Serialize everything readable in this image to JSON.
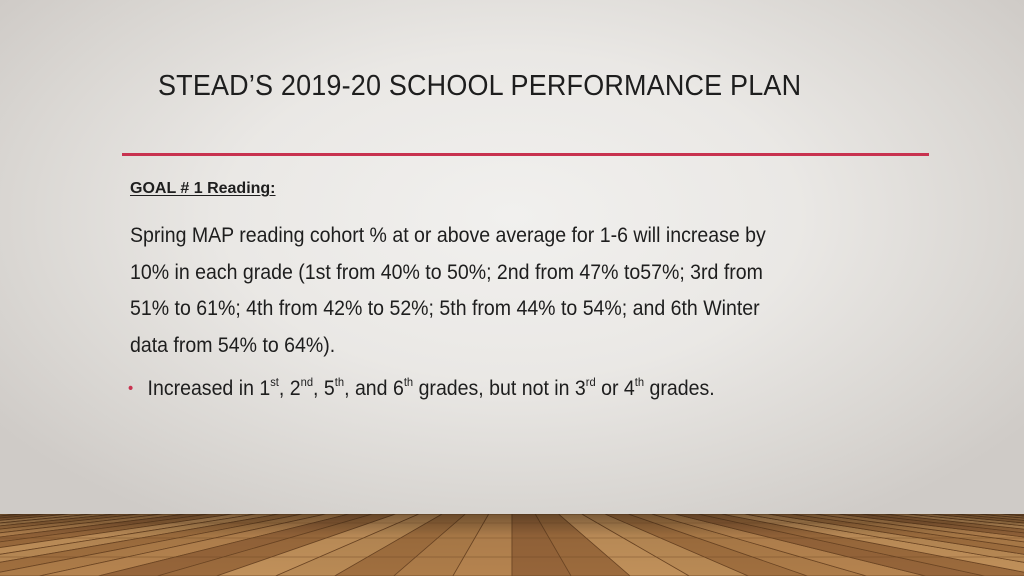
{
  "slide": {
    "title": "STEAD’S 2019-20 SCHOOL PERFORMANCE PLAN",
    "accent_color": "#c8324f",
    "goal_heading": "GOAL # 1 Reading:",
    "goal_lines": [
      "Spring MAP reading cohort % at or above average for 1-6 will increase by",
      "10% in each grade (1st from 40% to 50%; 2nd from 47% to57%; 3rd from",
      "51% to 61%; 4th from 42% to 52%; 5th from 44% to 54%; and 6th Winter",
      "data from 54% to 64%)."
    ],
    "bullet": {
      "icon": "bullet-dot",
      "parts": [
        {
          "text": "Increased in 1"
        },
        {
          "sup": "st"
        },
        {
          "text": ", 2"
        },
        {
          "sup": "nd"
        },
        {
          "text": ", 5"
        },
        {
          "sup": "th"
        },
        {
          "text": ", and 6"
        },
        {
          "sup": "th"
        },
        {
          "text": " grades, but not in 3"
        },
        {
          "sup": "rd"
        },
        {
          "text": " or 4"
        },
        {
          "sup": "th"
        },
        {
          "text": " grades."
        }
      ]
    }
  }
}
